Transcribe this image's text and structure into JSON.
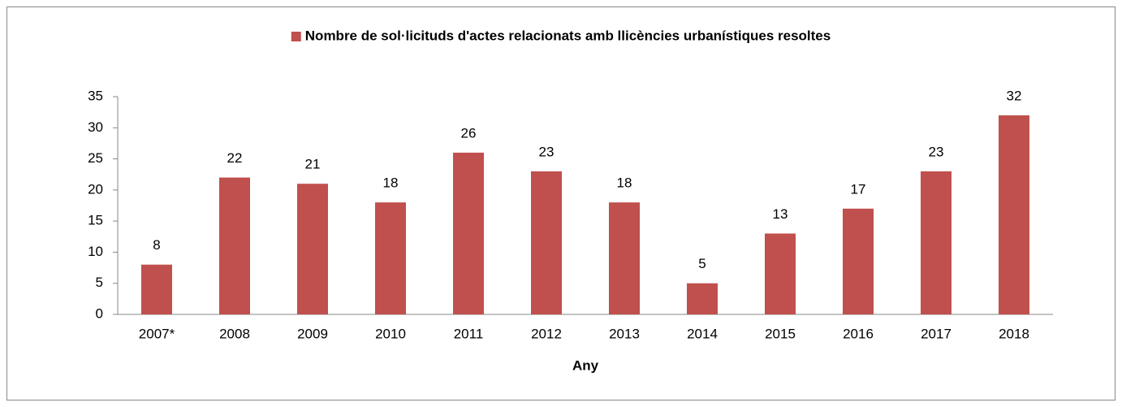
{
  "chart_data": {
    "type": "bar",
    "x_label": "Any",
    "categories": [
      "2007*",
      "2008",
      "2009",
      "2010",
      "2011",
      "2012",
      "2013",
      "2014",
      "2015",
      "2016",
      "2017",
      "2018"
    ],
    "series": [
      {
        "name": "Nombre de sol·licituds d'actes relacionats amb llicències urbanístiques resoltes",
        "color": "#c0504d",
        "values": [
          8,
          22,
          21,
          18,
          26,
          23,
          18,
          5,
          13,
          17,
          23,
          32
        ]
      }
    ],
    "ylim": [
      0,
      35
    ],
    "yticks": [
      0,
      5,
      10,
      15,
      20,
      25,
      30,
      35
    ],
    "grid": false,
    "legend": "top"
  }
}
